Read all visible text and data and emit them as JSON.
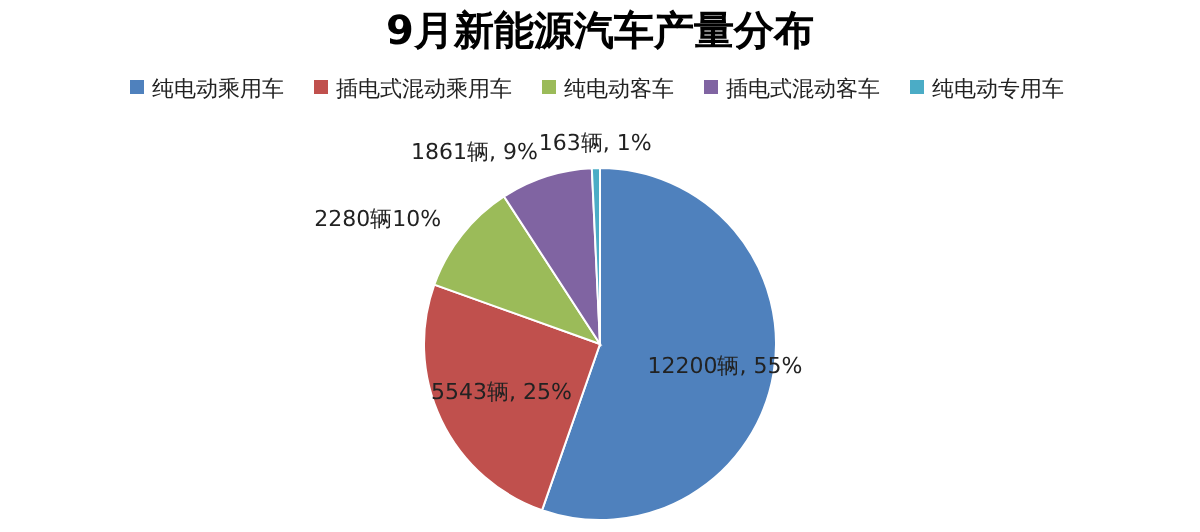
{
  "chart_data": {
    "type": "pie",
    "title": "9月新能源汽车产量分布",
    "categories": [
      "纯电动乘用车",
      "插电式混动乘用车",
      "纯电动客车",
      "插电式混动客车",
      "纯电动专用车"
    ],
    "values": [
      12200,
      5543,
      2280,
      1861,
      163
    ],
    "colors": [
      "#4f81bd",
      "#c0504d",
      "#9bbb59",
      "#8064a2",
      "#4bacc6"
    ],
    "value_labels": [
      "12200辆, 55%",
      "5543辆, 25%",
      "2280辆10%",
      "1861辆, 9%",
      "163辆, 1%"
    ],
    "legend": "top"
  }
}
